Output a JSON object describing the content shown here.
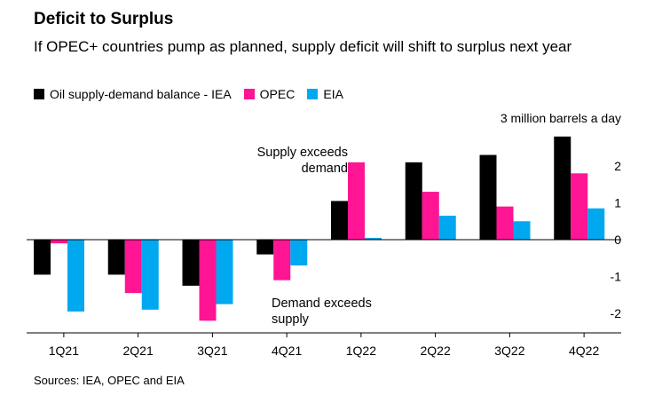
{
  "chart_data": {
    "type": "bar",
    "title": "Deficit to Surplus",
    "subtitle": "If OPEC+ countries pump as planned, supply deficit will shift to surplus next year",
    "unit_label": "3 million barrels a day",
    "categories": [
      "1Q21",
      "2Q21",
      "3Q21",
      "4Q21",
      "1Q22",
      "2Q22",
      "3Q22",
      "4Q22"
    ],
    "series": [
      {
        "name": "Oil supply-demand balance - IEA",
        "color": "#000000",
        "values": [
          -0.95,
          -0.95,
          -1.25,
          -0.4,
          1.05,
          2.1,
          2.3,
          2.8
        ]
      },
      {
        "name": "OPEC",
        "color": "#ff1493",
        "values": [
          -0.1,
          -1.45,
          -2.2,
          -1.1,
          2.1,
          1.3,
          0.9,
          1.8
        ]
      },
      {
        "name": "EIA",
        "color": "#00a8f0",
        "values": [
          -1.95,
          -1.9,
          -1.75,
          -0.7,
          0.05,
          0.65,
          0.5,
          0.85
        ]
      }
    ],
    "yticks": [
      2,
      1,
      0,
      -1,
      -2
    ],
    "ylim": [
      -2.5,
      3
    ],
    "annotations": [
      {
        "text": [
          "Supply exceeds",
          "demand"
        ],
        "align": "right"
      },
      {
        "text": [
          "Demand exceeds",
          "supply"
        ],
        "align": "left"
      }
    ],
    "grid": false,
    "legend_position": "top-left"
  },
  "source": "Sources: IEA, OPEC and EIA"
}
